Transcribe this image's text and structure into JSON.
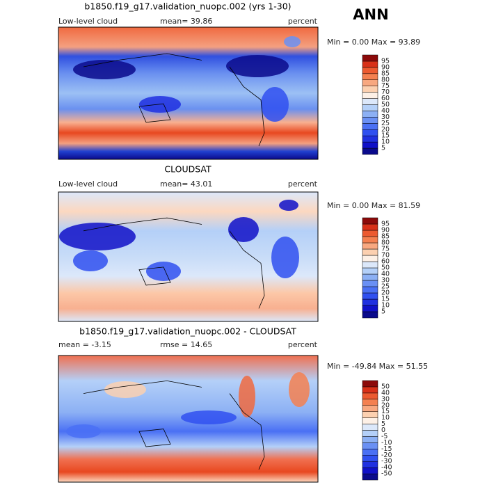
{
  "header": {
    "season": "ANN"
  },
  "panels": [
    {
      "title": "b1850.f19_g17.validation_nuopc.002 (yrs 1-30)",
      "left": "Low-level cloud",
      "center": "mean=  39.86",
      "right": "percent",
      "stats": "Min =   0.00 Max =  93.89",
      "colorbar": {
        "labels": [
          "5",
          "10",
          "15",
          "20",
          "25",
          "30",
          "40",
          "50",
          "60",
          "70",
          "75",
          "80",
          "85",
          "90",
          "95"
        ]
      }
    },
    {
      "title": "CLOUDSAT",
      "left": "Low-level cloud",
      "center": "mean=  43.01",
      "right": "percent",
      "stats": "Min =   0.00 Max =  81.59",
      "colorbar": {
        "labels": [
          "5",
          "10",
          "15",
          "20",
          "25",
          "30",
          "40",
          "50",
          "60",
          "70",
          "75",
          "80",
          "85",
          "90",
          "95"
        ]
      }
    },
    {
      "title": "b1850.f19_g17.validation_nuopc.002 - CLOUDSAT",
      "left": "mean =  -3.15",
      "center": "rmse =  14.65",
      "right": "percent",
      "stats": "Min = -49.84 Max =  51.55",
      "colorbar": {
        "labels": [
          "-50",
          "-40",
          "-30",
          "-20",
          "-15",
          "-10",
          "-5",
          "0",
          "5",
          "10",
          "15",
          "20",
          "30",
          "40",
          "50"
        ]
      }
    }
  ]
}
